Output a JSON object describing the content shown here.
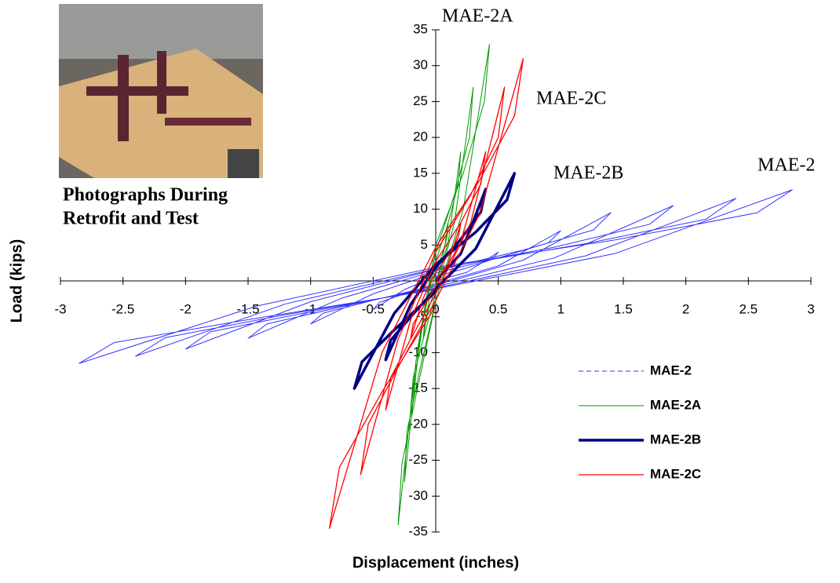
{
  "chart_data": {
    "type": "line",
    "x_label": "Displacement  (inches)",
    "y_label": "Load (kips)",
    "xlim": [
      -3,
      3
    ],
    "xticks": [
      -3,
      -2.5,
      -2,
      -1.5,
      -1,
      -0.5,
      0,
      0.5,
      1,
      1.5,
      2,
      2.5,
      3
    ],
    "ylim": [
      -35,
      35
    ],
    "yticks": [
      -35,
      -30,
      -25,
      -20,
      -15,
      -10,
      -5,
      0,
      5,
      10,
      15,
      20,
      25,
      30,
      35
    ],
    "legend": "lower right",
    "caption": [
      "Photographs During",
      "Retrofit and Test"
    ],
    "annotations": [
      "MAE-2A",
      "MAE-2C",
      "MAE-2B",
      "MAE-2"
    ],
    "series": [
      {
        "name": "MAE-2",
        "color": "#3333ff",
        "width": 1,
        "legend_dash": true,
        "x": [
          0,
          0.25,
          0.5,
          0.45,
          0.25,
          0,
          -0.25,
          -0.5,
          -0.45,
          -0.25,
          0,
          0.5,
          1,
          0.9,
          0.5,
          0,
          -0.5,
          -1,
          -0.9,
          -0.5,
          0,
          0.7,
          1.4,
          1.26,
          0.7,
          0,
          -0.75,
          -1.5,
          -1.35,
          -0.75,
          0,
          0.95,
          1.9,
          1.71,
          0.95,
          0,
          -1,
          -2,
          -1.8,
          -1,
          0,
          1.2,
          2.4,
          2.16,
          1.2,
          0,
          -1.2,
          -2.4,
          -2.16,
          -1.2,
          0,
          1.43,
          2.85,
          2.57,
          1.43,
          0,
          -1.43,
          -2.85,
          -2.57,
          -1.43,
          0
        ],
        "values": [
          0,
          1.2,
          4,
          3,
          1.8,
          0.6,
          -1.2,
          -4,
          -3,
          -1.8,
          -0.4,
          2.1,
          7,
          5.3,
          3.2,
          1.1,
          -1.8,
          -6,
          -4.5,
          -2.7,
          -0.6,
          2.9,
          9.5,
          7.1,
          4.3,
          1.4,
          -2.4,
          -8,
          -6,
          -3.6,
          -0.8,
          3.2,
          10.5,
          7.9,
          4.7,
          1.6,
          -2.9,
          -9.5,
          -7.1,
          -4.3,
          -1,
          3.5,
          11.5,
          8.6,
          5.2,
          1.7,
          -3.2,
          -10.5,
          -7.9,
          -4.7,
          -1.1,
          3.8,
          12.7,
          9.5,
          5.7,
          1.9,
          -3.5,
          -11.5,
          -8.6,
          -5.2,
          -1.2
        ]
      },
      {
        "name": "MAE-2A",
        "color": "#009900",
        "width": 1,
        "legend_dash": false,
        "x": [
          0,
          0.05,
          0.1,
          0.09,
          0.05,
          0,
          -0.05,
          -0.1,
          -0.09,
          -0.05,
          0,
          0.1,
          0.2,
          0.18,
          0.1,
          0,
          -0.1,
          -0.2,
          -0.18,
          -0.1,
          0,
          0.15,
          0.3,
          0.27,
          0.15,
          0,
          -0.13,
          -0.25,
          -0.23,
          -0.13,
          0,
          0.22,
          0.43,
          0.39,
          0.22,
          0,
          -0.15,
          -0.3,
          -0.27,
          -0.15,
          0
        ],
        "values": [
          0,
          2.4,
          8,
          6,
          3.6,
          1.2,
          -2.4,
          -8,
          -6,
          -3.6,
          -0.8,
          5.4,
          18,
          13.5,
          8.1,
          2.7,
          -5.4,
          -18,
          -13.5,
          -8.1,
          -1.8,
          8.1,
          27,
          20,
          12,
          4,
          -8.4,
          -28,
          -21,
          -12.6,
          -2.8,
          10,
          33,
          25,
          15,
          5,
          -10,
          -34,
          -25.5,
          -15.3,
          -3
        ]
      },
      {
        "name": "MAE-2B",
        "color": "#000080",
        "width": 3.5,
        "legend_dash": false,
        "x": [
          0,
          0.2,
          0.4,
          0.36,
          0.2,
          0,
          -0.2,
          -0.4,
          -0.36,
          -0.2,
          0,
          0.32,
          0.63,
          0.57,
          0.32,
          0,
          -0.33,
          -0.65,
          -0.59,
          -0.33,
          0
        ],
        "values": [
          0,
          3.8,
          12.8,
          9.6,
          5.8,
          1.9,
          -3.3,
          -11,
          -8.3,
          -5,
          -1.1,
          4.5,
          15,
          11.3,
          6.8,
          2.3,
          -4.5,
          -15,
          -11.3,
          -6.8,
          -1.5
        ]
      },
      {
        "name": "MAE-2C",
        "color": "#ff0000",
        "width": 1.3,
        "legend_dash": false,
        "x": [
          0,
          0.1,
          0.2,
          0.18,
          0.1,
          0,
          -0.1,
          -0.2,
          -0.18,
          -0.1,
          0,
          0.2,
          0.4,
          0.36,
          0.2,
          0,
          -0.2,
          -0.4,
          -0.36,
          -0.2,
          0,
          0.28,
          0.55,
          0.5,
          0.28,
          0,
          -0.3,
          -0.6,
          -0.54,
          -0.3,
          0,
          0.35,
          0.7,
          0.63,
          0.35,
          0,
          -0.43,
          -0.85,
          -0.77,
          -0.43,
          0
        ],
        "values": [
          0,
          2.4,
          8,
          6,
          3.6,
          1.2,
          -2.4,
          -8,
          -6,
          -3.6,
          -0.8,
          5.4,
          18,
          13.5,
          8.1,
          2.7,
          -5.4,
          -18,
          -13.5,
          -8.1,
          -1.8,
          8.1,
          27,
          20,
          12,
          4,
          -8.1,
          -27,
          -20,
          -12,
          -2.7,
          9.3,
          31,
          23,
          14,
          4.7,
          -10,
          -34.5,
          -26,
          -15.5,
          -3.5
        ]
      }
    ]
  }
}
